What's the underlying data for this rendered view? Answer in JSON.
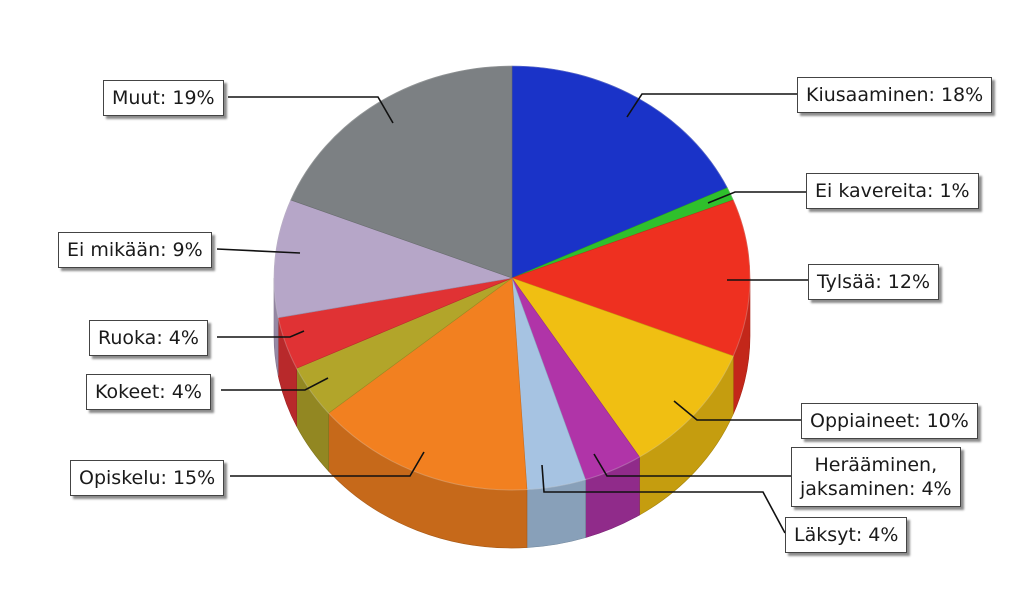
{
  "chart_data": {
    "type": "pie",
    "title": "",
    "slices": [
      {
        "label": "Kiusaaminen: 18%",
        "value": 18,
        "color": "#1a33c8"
      },
      {
        "label": "Ei kavereita: 1%",
        "value": 1,
        "color": "#2fc02c"
      },
      {
        "label": "Tylsää: 12%",
        "value": 12,
        "color": "#ee3020"
      },
      {
        "label": "Oppiaineet: 10%",
        "value": 10,
        "color": "#f0bf12"
      },
      {
        "label": "Herääminen, jaksaminen: 4%",
        "label_lines": [
          "Herääminen,",
          "jaksaminen: 4%"
        ],
        "value": 4,
        "color": "#b034a8"
      },
      {
        "label": "Läksyt: 4%",
        "value": 4,
        "color": "#a6c3e2"
      },
      {
        "label": "Opiskelu: 15%",
        "value": 15,
        "color": "#f28020"
      },
      {
        "label": "Kokeet: 4%",
        "value": 4,
        "color": "#b2a52a"
      },
      {
        "label": "Ruoka: 4%",
        "value": 4,
        "color": "#e03234"
      },
      {
        "label": "Ei mikään: 9%",
        "value": 9,
        "color": "#b6a6c8"
      },
      {
        "label": "Muut: 19%",
        "value": 19,
        "color": "#7c8083"
      }
    ]
  }
}
